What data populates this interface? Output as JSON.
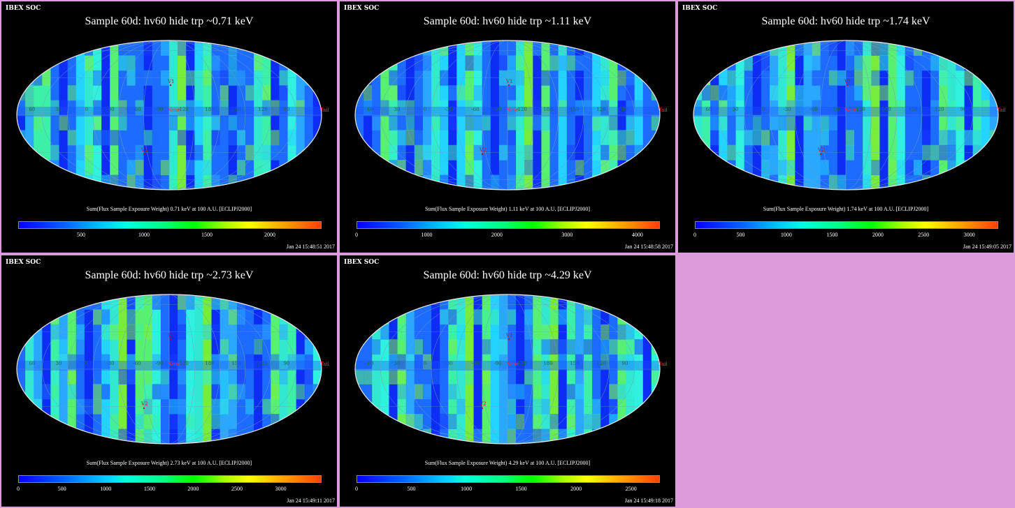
{
  "header": "IBEX SOC",
  "colorbar_label_prefix": "Sum(Flux Sample Exposure Weight)",
  "colorbar_label_suffix": "at 100 A.U. [ECLIPJ2000]",
  "map_labels": {
    "v1": "V1",
    "v2": "V2",
    "nose": "Nose",
    "tail": "Tail",
    "lon_ticks": [
      "60",
      "30",
      "0",
      "-30",
      "-60",
      "-90",
      "-120",
      "180",
      "150",
      "120",
      "90"
    ],
    "lat_ticks": [
      "30",
      "-30",
      "-60"
    ]
  },
  "colors": {
    "border": "#dc9cdc",
    "panel_bg": "#000000",
    "nose_tail": "#ff3030"
  },
  "panels": [
    {
      "title": "Sample 60d: hv60 hide trp ~0.71 keV",
      "colorbar_label": "Sum(Flux Sample Exposure Weight)  0.71 keV at 100 A.U. [ECLIPJ2000]",
      "ticks": [
        {
          "label": "500",
          "value": 500
        },
        {
          "label": "1000",
          "value": 1000
        },
        {
          "label": "1500",
          "value": 1500
        },
        {
          "label": "2000",
          "value": 2000
        }
      ],
      "range": [
        0,
        2400
      ],
      "date": "Jan 24 15:48:51 2017"
    },
    {
      "title": "Sample 60d: hv60 hide trp ~1.11 keV",
      "colorbar_label": "Sum(Flux Sample Exposure Weight)  1.11 keV at 100 A.U. [ECLIPJ2000]",
      "ticks": [
        {
          "label": "0",
          "value": 0
        },
        {
          "label": "1000",
          "value": 1000
        },
        {
          "label": "2000",
          "value": 2000
        },
        {
          "label": "3000",
          "value": 3000
        },
        {
          "label": "4000",
          "value": 4000
        }
      ],
      "range": [
        0,
        4300
      ],
      "date": "Jan 24 15:48:58 2017"
    },
    {
      "title": "Sample 60d: hv60 hide trp ~1.74 keV",
      "colorbar_label": "Sum(Flux Sample Exposure Weight)  1.74 keV at 100 A.U. [ECLIPJ2000]",
      "ticks": [
        {
          "label": "0",
          "value": 0
        },
        {
          "label": "500",
          "value": 500
        },
        {
          "label": "1000",
          "value": 1000
        },
        {
          "label": "1500",
          "value": 1500
        },
        {
          "label": "2000",
          "value": 2000
        },
        {
          "label": "2500",
          "value": 2500
        },
        {
          "label": "3000",
          "value": 3000
        }
      ],
      "range": [
        0,
        3300
      ],
      "date": "Jan 24 15:49:05 2017"
    },
    {
      "title": "Sample 60d: hv60 hide trp ~2.73 keV",
      "colorbar_label": "Sum(Flux Sample Exposure Weight)  2.73 keV at 100 A.U. [ECLIPJ2000]",
      "ticks": [
        {
          "label": "0",
          "value": 0
        },
        {
          "label": "500",
          "value": 500
        },
        {
          "label": "1000",
          "value": 1000
        },
        {
          "label": "1500",
          "value": 1500
        },
        {
          "label": "2000",
          "value": 2000
        },
        {
          "label": "2500",
          "value": 2500
        },
        {
          "label": "3000",
          "value": 3000
        }
      ],
      "range": [
        0,
        3450
      ],
      "date": "Jan 24 15:49:11 2017"
    },
    {
      "title": "Sample 60d: hv60 hide trp ~4.29 keV",
      "colorbar_label": "Sum(Flux Sample Exposure Weight)  4.29 keV at 100 A.U. [ECLIPJ2000]",
      "ticks": [
        {
          "label": "0",
          "value": 0
        },
        {
          "label": "500",
          "value": 500
        },
        {
          "label": "1000",
          "value": 1000
        },
        {
          "label": "1500",
          "value": 1500
        },
        {
          "label": "2000",
          "value": 2000
        },
        {
          "label": "2500",
          "value": 2500
        }
      ],
      "range": [
        0,
        2750
      ],
      "date": "Jan 24 15:49:18 2017"
    }
  ]
}
